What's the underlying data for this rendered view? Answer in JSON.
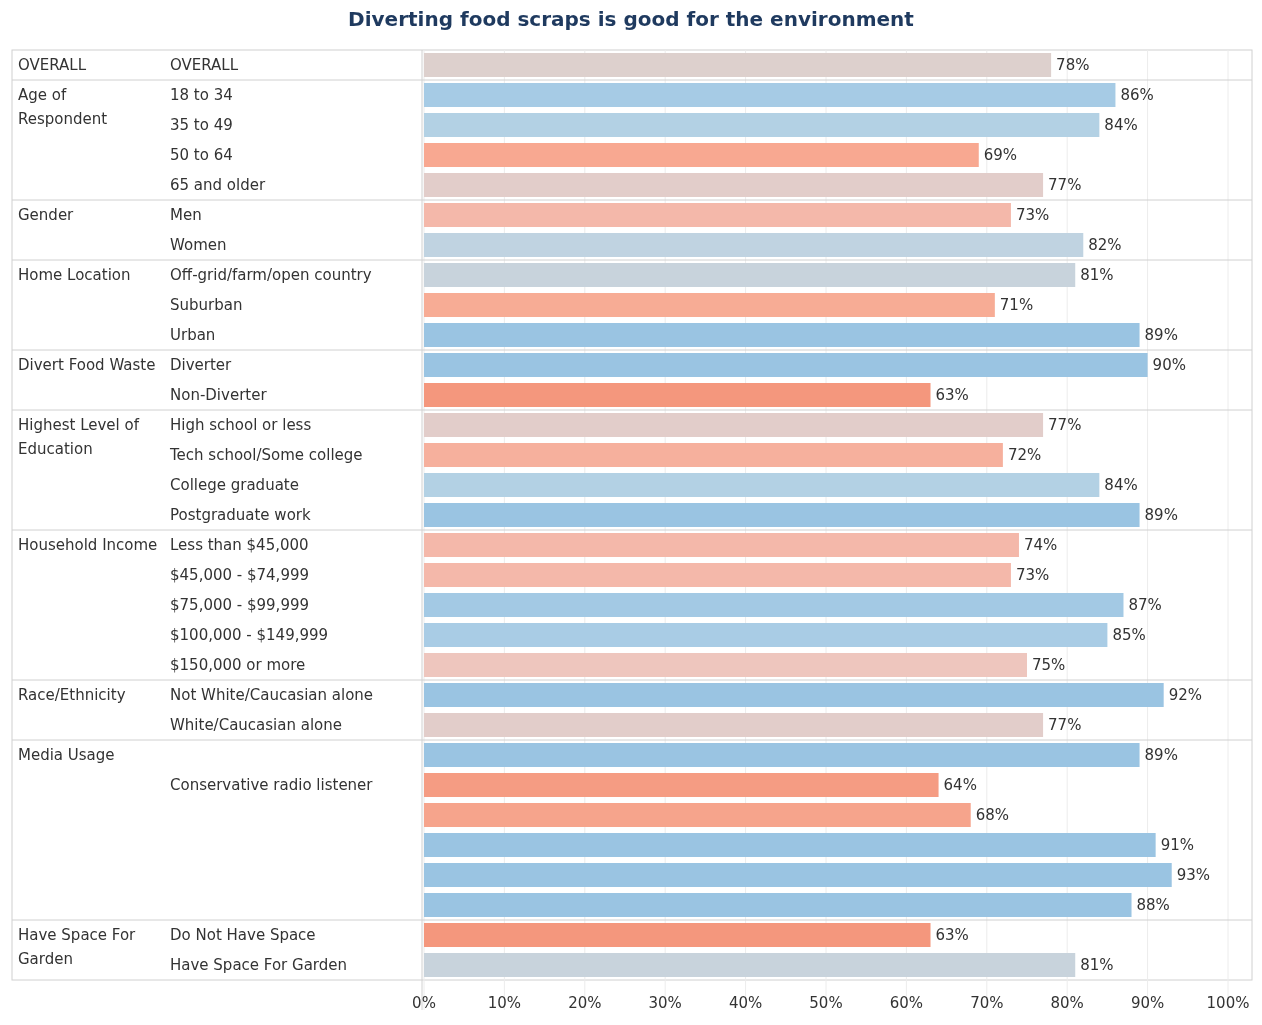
{
  "chart_data": {
    "type": "bar",
    "orientation": "horizontal",
    "title": "Diverting food scraps is good for the environment",
    "categories": [
      "OVERALL",
      "18 to 34",
      "35 to 49",
      "50 to 64",
      "65 and older",
      "Men",
      "Women",
      "Off-grid/farm/open country",
      "Suburban",
      "Urban",
      "Diverter",
      "Non-Diverter",
      "High school or less",
      "Tech school/Some college",
      "College graduate",
      "Postgraduate work",
      "Less than $45,000",
      "$45,000 - $74,999",
      "$75,000 - $99,999",
      "$100,000 - $149,999",
      "$150,000 or more",
      "Not White/Caucasian alone",
      "White/Caucasian alone",
      null,
      "Conservative radio listener",
      null,
      null,
      null,
      null,
      "Do Not Have Space",
      "Have Space For Garden"
    ],
    "values": [
      78,
      86,
      84,
      69,
      77,
      73,
      82,
      81,
      71,
      89,
      90,
      63,
      77,
      72,
      84,
      89,
      74,
      73,
      87,
      85,
      75,
      92,
      77,
      89,
      64,
      68,
      91,
      93,
      88,
      63,
      81
    ],
    "value_labels": [
      "78%",
      "86%",
      "84%",
      "69%",
      "77%",
      "73%",
      "82%",
      "81%",
      "71%",
      "89%",
      "90%",
      "63%",
      "77%",
      "72%",
      "84%",
      "89%",
      "74%",
      "73%",
      "87%",
      "85%",
      "75%",
      "92%",
      "77%",
      "89%",
      "64%",
      "68%",
      "91%",
      "93%",
      "88%",
      "63%",
      "81%"
    ],
    "colors": [
      "#ddd0cd",
      "#a6cbe5",
      "#b3d1e4",
      "#f8a891",
      "#e2cdca",
      "#f4b8aa",
      "#c0d3e1",
      "#c8d3dc",
      "#f7ac95",
      "#9ac4e2",
      "#9ac4e2",
      "#f4977d",
      "#e2cdca",
      "#f6b09d",
      "#b3d1e4",
      "#9ac4e2",
      "#f4b8aa",
      "#f4b8aa",
      "#a3c9e4",
      "#a9cce5",
      "#eec6be",
      "#9ac4e2",
      "#e2cdca",
      "#9ac4e2",
      "#f59c83",
      "#f6a48c",
      "#9ac4e2",
      "#9ac4e2",
      "#9ac4e2",
      "#f4977d",
      "#c8d3dc"
    ],
    "xlim": [
      0,
      100
    ],
    "xticks": [
      {
        "value": 0,
        "label": "0%"
      },
      {
        "value": 10,
        "label": "10%"
      },
      {
        "value": 20,
        "label": "20%"
      },
      {
        "value": 30,
        "label": "30%"
      },
      {
        "value": 40,
        "label": "40%"
      },
      {
        "value": 50,
        "label": "50%"
      },
      {
        "value": 60,
        "label": "60%"
      },
      {
        "value": 70,
        "label": "70%"
      },
      {
        "value": 80,
        "label": "80%"
      },
      {
        "value": 90,
        "label": "90%"
      },
      {
        "value": 100,
        "label": "100%"
      }
    ],
    "grid": "x",
    "annotations": [
      "OVERALL",
      "Age of Respondent",
      "Gender",
      "Home Location",
      "Divert Food Waste",
      "Highest Level of Education",
      "Household Income",
      "Race/Ethnicity",
      "Media Usage",
      "Have Space For Garden"
    ]
  }
}
